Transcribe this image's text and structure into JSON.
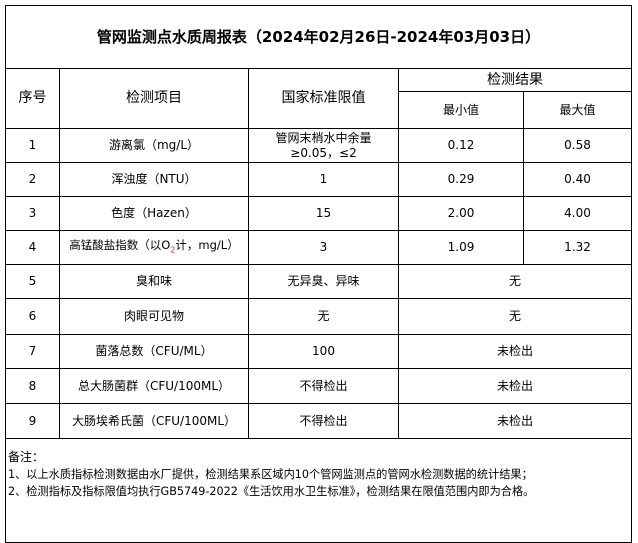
{
  "title": "管网监测点水质周报表（2024年02月26日-2024年03月03日）",
  "headers": {
    "no": "序号",
    "item": "检测项目",
    "standard": "国家标准限值",
    "result": "检测结果",
    "min": "最小值",
    "max": "最大值"
  },
  "rows": [
    {
      "no": "1",
      "item": "游离氯（mg/L）",
      "standard": "管网末梢水中余量≥0.05，≤2",
      "min": "0.12",
      "max": "0.58"
    },
    {
      "no": "2",
      "item": "浑浊度（NTU）",
      "standard": "1",
      "min": "0.29",
      "max": "0.40"
    },
    {
      "no": "3",
      "item": "色度（Hazen）",
      "standard": "15",
      "min": "2.00",
      "max": "4.00"
    },
    {
      "no": "4",
      "item_pre": "高锰酸盐指数（以O",
      "item_sub": "2",
      "item_post": "计，mg/L）",
      "standard": "3",
      "min": "1.09",
      "max": "1.32"
    },
    {
      "no": "5",
      "item": "臭和味",
      "standard": "无异臭、异味",
      "result": "无"
    },
    {
      "no": "6",
      "item": "肉眼可见物",
      "standard": "无",
      "result": "无"
    },
    {
      "no": "7",
      "item": "菌落总数（CFU/ML）",
      "standard": "100",
      "result": "未检出"
    },
    {
      "no": "8",
      "item": "总大肠菌群（CFU/100ML）",
      "standard": "不得检出",
      "result": "未检出"
    },
    {
      "no": "9",
      "item": "大肠埃希氏菌（CFU/100ML）",
      "standard": "不得检出",
      "result": "未检出"
    }
  ],
  "notes": {
    "label": "备注：",
    "line1": "1、以上水质指标检测数据由水厂提供，检测结果系区域内10个管网监测点的管网水检测数据的统计结果；",
    "line2": "2、检测指标及指标限值均执行GB5749-2022《生活饮用水卫生标准》，检测结果在限值范围内即为合格。"
  }
}
